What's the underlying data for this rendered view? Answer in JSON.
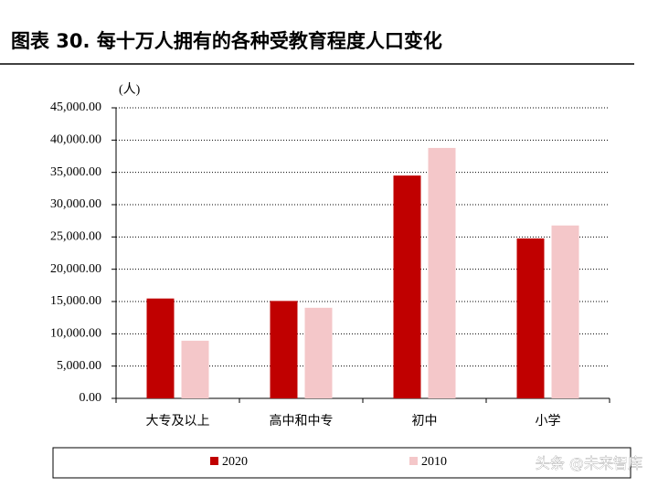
{
  "chart_data": {
    "type": "bar",
    "title": "图表 30. 每十万人拥有的各种受教育程度人口变化",
    "y_axis_label": "(人)",
    "categories": [
      "大专及以上",
      "高中和中专",
      "初中",
      "小学"
    ],
    "series": [
      {
        "name": "2020",
        "color": "#c00000",
        "values": [
          15467,
          15088,
          34507,
          24767
        ]
      },
      {
        "name": "2010",
        "color": "#f4c7c9",
        "values": [
          8930,
          14032,
          38788,
          26779
        ]
      }
    ],
    "ylim": [
      0,
      45000
    ],
    "yticks": [
      {
        "value": 0,
        "label": "0.00"
      },
      {
        "value": 5000,
        "label": "5,000.00"
      },
      {
        "value": 10000,
        "label": "10,000.00"
      },
      {
        "value": 15000,
        "label": "15,000.00"
      },
      {
        "value": 20000,
        "label": "20,000.00"
      },
      {
        "value": 25000,
        "label": "25,000.00"
      },
      {
        "value": 30000,
        "label": "30,000.00"
      },
      {
        "value": 35000,
        "label": "35,000.00"
      },
      {
        "value": 40000,
        "label": "40,000.00"
      },
      {
        "value": 45000,
        "label": "45,000.00"
      }
    ],
    "grid": true,
    "legend_position": "bottom",
    "watermark": "头条 @未来智库"
  }
}
